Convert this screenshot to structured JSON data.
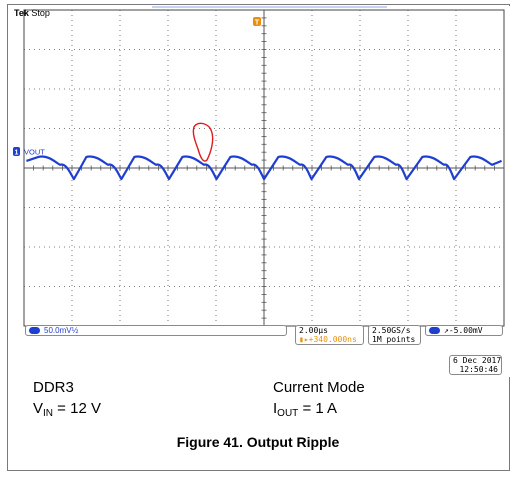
{
  "scope": {
    "brand": "Tek",
    "status": "Stop",
    "trace_label": "VOUT",
    "channel_badge": "1",
    "trigger_marker": "T",
    "ch1_scale": "50.0mV",
    "ch1_coupling": "½",
    "timebase": "2.00µs",
    "trigger_position": "+340.000ns",
    "sample_rate": "2.50GS/s",
    "record_length": "1M points",
    "trigger_level": "-5.00mV",
    "date": "6 Dec 2017",
    "time": "12:50:46",
    "colors": {
      "trace": "#1f3fd0",
      "marker": "#e8900c",
      "annotation": "#e01b1b",
      "grid": "#555555"
    }
  },
  "caption": {
    "left_line1": "DDR3",
    "vin_symbol": "V",
    "vin_sub": "IN",
    "vin_value": " = 12 V",
    "right_line1": "Current Mode",
    "iout_symbol": "I",
    "iout_sub": "OUT",
    "iout_value": " = 1 A",
    "figure_title": "Figure 41. Output Ripple"
  },
  "chart_data": {
    "type": "line",
    "title": "Figure 41. Output Ripple",
    "xlabel": "",
    "ylabel": "",
    "x_unit": "µs",
    "y_unit": "mV",
    "x_scale_per_div": 2.0,
    "y_scale_per_div": 50.0,
    "x_divisions": 10,
    "y_divisions": 8,
    "xlim": [
      -10,
      10
    ],
    "ylim": [
      -200,
      200
    ],
    "grid": true,
    "series": [
      {
        "name": "VOUT",
        "switching_period_us": 1.98,
        "ripple_peak_to_peak_mV": 28,
        "x": [
          -9.9,
          -9.4,
          -8.5,
          -7.92,
          -7.4,
          -6.5,
          -5.94,
          -5.4,
          -4.5,
          -3.96,
          -3.4,
          -2.5,
          -1.98,
          -1.4,
          -0.5,
          0.0,
          0.6,
          1.5,
          1.98,
          2.6,
          3.5,
          3.96,
          4.6,
          5.5,
          5.94,
          6.6,
          7.5,
          7.92,
          8.6,
          9.5,
          9.9
        ],
        "y": [
          9,
          14,
          4,
          -14,
          14,
          4,
          -14,
          14,
          4,
          -14,
          14,
          4,
          -14,
          14,
          4,
          -14,
          14,
          4,
          -14,
          14,
          4,
          -14,
          14,
          4,
          -14,
          14,
          4,
          -14,
          14,
          4,
          9
        ]
      }
    ]
  }
}
